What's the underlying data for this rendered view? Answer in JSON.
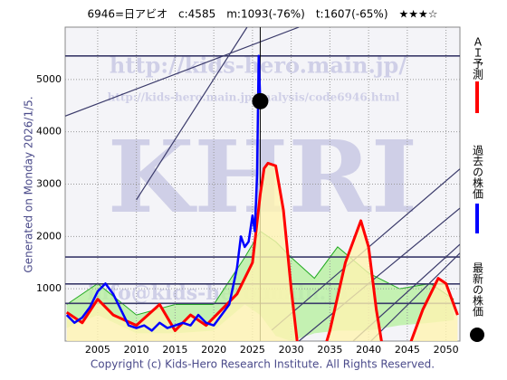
{
  "chart_data": {
    "type": "line",
    "title": "6946=日アビオ　c:4585　m:1093(-76%)　t:1607(-65%)　★★★☆",
    "side_label": "Generated on Monday 2026/1/5.",
    "footer": "Copyright (c) Kids-Hero Research Institute. All Rights Reserved.",
    "watermarks": [
      "http://kids-hero.main.jp/",
      "http://kids-hero.main.jp/analysis/code6946.html",
      "KHRI",
      "info@kids-hero.main.jp"
    ],
    "xlim": [
      2000.8,
      2051.8
    ],
    "ylim": [
      0,
      6000
    ],
    "xticks": [
      2005,
      2010,
      2015,
      2020,
      2025,
      2030,
      2035,
      2040,
      2045,
      2050
    ],
    "yticks": [
      1000,
      2000,
      3000,
      4000,
      5000
    ],
    "grid": true,
    "band": {
      "color": "#b8f0a0",
      "x": [
        2001,
        2005,
        2010,
        2015,
        2020,
        2024,
        2026,
        2028,
        2030,
        2033,
        2036,
        2040,
        2044,
        2048,
        2051
      ],
      "upper": [
        700,
        1100,
        500,
        700,
        700,
        1600,
        2100,
        1900,
        1600,
        1200,
        1800,
        1300,
        1000,
        1100,
        800
      ],
      "lower": [
        250,
        500,
        150,
        150,
        200,
        700,
        500,
        100,
        0,
        150,
        200,
        200,
        300,
        350,
        400
      ]
    },
    "series": [
      {
        "name": "ＡＩ予測",
        "color": "#ff0000",
        "fill": "#fff4b0",
        "x": [
          2001,
          2003,
          2005,
          2007,
          2010,
          2013,
          2015,
          2017,
          2019,
          2021,
          2023,
          2025,
          2026,
          2026.5,
          2027,
          2028,
          2029,
          2030,
          2031,
          2033,
          2035,
          2037,
          2039,
          2040,
          2041,
          2042,
          2045,
          2047,
          2049,
          2050,
          2051.5
        ],
        "values": [
          550,
          350,
          800,
          500,
          300,
          700,
          200,
          500,
          300,
          600,
          900,
          1500,
          2800,
          3300,
          3400,
          3350,
          2500,
          1000,
          -300,
          -800,
          200,
          1500,
          2300,
          1800,
          600,
          -300,
          -200,
          600,
          1200,
          1100,
          500
        ]
      },
      {
        "name": "過去の株価",
        "color": "#0000ff",
        "x": [
          2001,
          2002,
          2003,
          2004,
          2005,
          2006,
          2007,
          2008,
          2009,
          2010,
          2011,
          2012,
          2013,
          2014,
          2015,
          2016,
          2017,
          2018,
          2019,
          2020,
          2021,
          2022,
          2023,
          2023.5,
          2024,
          2024.5,
          2025,
          2025.3,
          2025.6,
          2025.8,
          2026
        ],
        "values": [
          500,
          350,
          450,
          650,
          950,
          1100,
          900,
          600,
          300,
          250,
          300,
          200,
          350,
          250,
          300,
          350,
          300,
          500,
          350,
          300,
          500,
          700,
          1400,
          2000,
          1800,
          1900,
          2400,
          2100,
          3200,
          5450,
          4585
        ]
      },
      {
        "name": "最新の株価",
        "color": "#000000",
        "x": [
          2026
        ],
        "values": [
          4585
        ]
      }
    ],
    "hlines": [
      5450,
      1607,
      1093,
      720
    ],
    "trend_lines": [
      {
        "x": [
          2000.8,
          2031
        ],
        "values": [
          4300,
          6000
        ]
      },
      {
        "x": [
          2010,
          2024.3
        ],
        "values": [
          2700,
          6000
        ]
      },
      {
        "x": [
          2027.5,
          2051.8
        ],
        "values": [
          210,
          3290
        ]
      },
      {
        "x": [
          2031,
          2051.8
        ],
        "values": [
          0,
          2540
        ]
      },
      {
        "x": [
          2038,
          2051.8
        ],
        "values": [
          0,
          1850
        ]
      },
      {
        "x": [
          2040.3,
          2051.8
        ],
        "values": [
          0,
          1680
        ]
      }
    ],
    "vline": 2026
  }
}
